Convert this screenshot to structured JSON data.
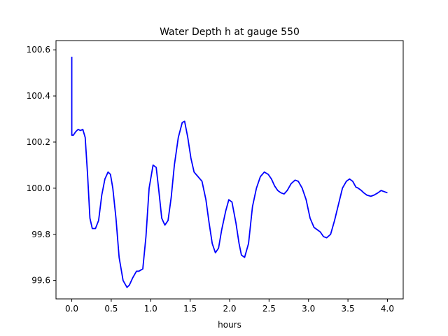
{
  "chart_data": {
    "type": "line",
    "title": "Water Depth h at gauge 550",
    "xlabel": "hours",
    "ylabel": "",
    "xlim": [
      -0.2,
      4.2
    ],
    "ylim": [
      99.52,
      100.64
    ],
    "xticks": [
      0.0,
      0.5,
      1.0,
      1.5,
      2.0,
      2.5,
      3.0,
      3.5,
      4.0
    ],
    "xtick_labels": [
      "0.0",
      "0.5",
      "1.0",
      "1.5",
      "2.0",
      "2.5",
      "3.0",
      "3.5",
      "4.0"
    ],
    "yticks": [
      99.6,
      99.8,
      100.0,
      100.2,
      100.4,
      100.6
    ],
    "ytick_labels": [
      "99.6",
      "99.8",
      "100.0",
      "100.2",
      "100.4",
      "100.6"
    ],
    "grid": false,
    "series": [
      {
        "color": "#0000ff",
        "x": [
          0.0,
          0.0,
          0.02,
          0.05,
          0.08,
          0.11,
          0.14,
          0.17,
          0.2,
          0.23,
          0.26,
          0.3,
          0.34,
          0.38,
          0.42,
          0.46,
          0.49,
          0.52,
          0.56,
          0.6,
          0.65,
          0.7,
          0.73,
          0.77,
          0.82,
          0.85,
          0.9,
          0.94,
          0.98,
          1.03,
          1.07,
          1.1,
          1.14,
          1.18,
          1.22,
          1.26,
          1.3,
          1.35,
          1.4,
          1.43,
          1.47,
          1.51,
          1.55,
          1.6,
          1.65,
          1.7,
          1.74,
          1.78,
          1.82,
          1.86,
          1.9,
          1.95,
          1.99,
          2.03,
          2.08,
          2.12,
          2.15,
          2.19,
          2.24,
          2.29,
          2.34,
          2.39,
          2.44,
          2.49,
          2.53,
          2.57,
          2.61,
          2.65,
          2.69,
          2.73,
          2.78,
          2.83,
          2.87,
          2.92,
          2.97,
          3.02,
          3.07,
          3.11,
          3.15,
          3.19,
          3.23,
          3.28,
          3.33,
          3.38,
          3.43,
          3.48,
          3.52,
          3.56,
          3.6,
          3.63,
          3.67,
          3.7,
          3.74,
          3.79,
          3.83,
          3.88,
          3.92,
          3.96,
          4.0
        ],
        "y": [
          100.57,
          100.23,
          100.23,
          100.245,
          100.255,
          100.25,
          100.255,
          100.22,
          100.06,
          99.87,
          99.825,
          99.825,
          99.86,
          99.97,
          100.04,
          100.07,
          100.06,
          100.0,
          99.87,
          99.7,
          99.6,
          99.57,
          99.58,
          99.61,
          99.64,
          99.64,
          99.65,
          99.79,
          100.0,
          100.1,
          100.09,
          100.0,
          99.87,
          99.84,
          99.86,
          99.96,
          100.1,
          100.22,
          100.285,
          100.29,
          100.22,
          100.13,
          100.07,
          100.05,
          100.03,
          99.95,
          99.85,
          99.76,
          99.72,
          99.74,
          99.82,
          99.9,
          99.95,
          99.94,
          99.85,
          99.76,
          99.71,
          99.7,
          99.76,
          99.92,
          100.0,
          100.05,
          100.07,
          100.06,
          100.04,
          100.01,
          99.99,
          99.98,
          99.975,
          99.99,
          100.02,
          100.035,
          100.03,
          100.0,
          99.95,
          99.87,
          99.83,
          99.82,
          99.81,
          99.79,
          99.785,
          99.8,
          99.86,
          99.93,
          100.0,
          100.03,
          100.04,
          100.03,
          100.005,
          100.0,
          99.99,
          99.98,
          99.97,
          99.965,
          99.97,
          99.98,
          99.99,
          99.985,
          99.98
        ]
      }
    ]
  }
}
